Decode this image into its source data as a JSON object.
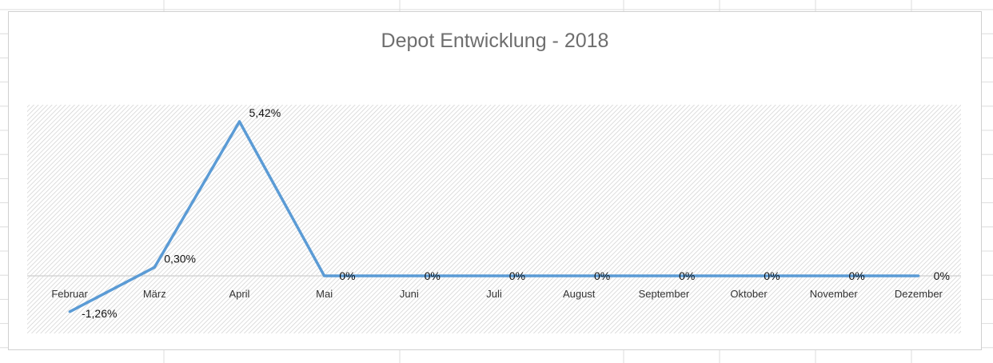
{
  "chart_data": {
    "type": "line",
    "title": "Depot Entwicklung - 2018",
    "xlabel": "",
    "ylabel": "",
    "categories": [
      "Februar",
      "März",
      "April",
      "Mai",
      "Juni",
      "Juli",
      "August",
      "September",
      "Oktober",
      "November",
      "Dezember"
    ],
    "series": [
      {
        "values": [
          -1.26,
          0.3,
          5.42,
          0,
          0,
          0,
          0,
          0,
          0,
          0,
          0
        ],
        "labels": [
          "-1,26%",
          "0,30%",
          "5,42%",
          "0%",
          "0%",
          "0%",
          "0%",
          "0%",
          "0%",
          "0%",
          "0%"
        ],
        "color": "#5b9bd5"
      }
    ],
    "ylim": [
      -1.8,
      5.7
    ],
    "grid": false,
    "legend": "none",
    "plot_area_fill": "diagonal-hatch",
    "colors": {
      "line": "#5b9bd5",
      "hatch": "#d0d0d0",
      "title": "#6e6e6e",
      "axis": "#cfcfcf"
    }
  }
}
